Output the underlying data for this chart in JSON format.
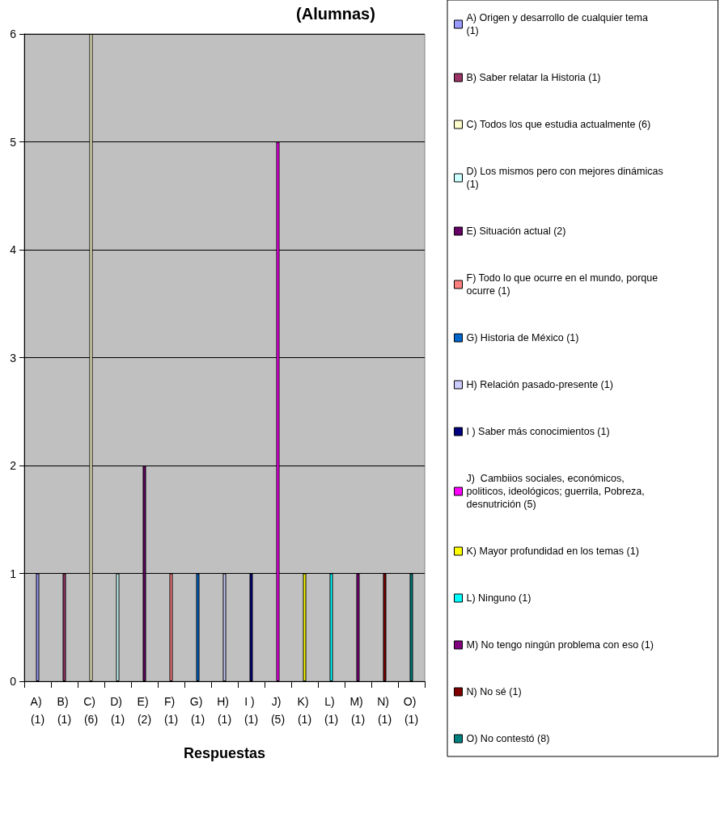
{
  "chart_data": {
    "type": "bar",
    "title": "(Alumnas)",
    "xlabel": "Respuestas",
    "stacked": true,
    "grid": "y",
    "legend": "right",
    "categories": [
      "A) (1)",
      "B) (1)",
      "C) (6)",
      "D) (1)",
      "E) (2)",
      "F) (1)",
      "G) (1)",
      "H) (1)",
      "I ) (1)",
      "J) (5)",
      "K) (1)",
      "L) (1)",
      "M) (1)",
      "N) (1)",
      "O) (1)"
    ],
    "ylim": [
      0,
      6
    ],
    "yticks": [
      0,
      1,
      2,
      3,
      4,
      5,
      6
    ],
    "series": [
      {
        "name": "A) Origen y desarrollo de cualquier tema (1)",
        "color": "#9999ff",
        "values": [
          1,
          null,
          null,
          null,
          null,
          null,
          null,
          null,
          null,
          null,
          null,
          null,
          null,
          null,
          null
        ]
      },
      {
        "name": "B) Saber relatar la Historia (1)",
        "color": "#993366",
        "values": [
          null,
          1,
          null,
          null,
          null,
          null,
          null,
          null,
          null,
          null,
          null,
          null,
          null,
          null,
          null
        ]
      },
      {
        "name": "C) Todos los que estudia actualmente (6)",
        "color": "#ffffcc",
        "values": [
          null,
          null,
          6,
          null,
          null,
          null,
          null,
          null,
          null,
          null,
          null,
          null,
          null,
          null,
          null
        ]
      },
      {
        "name": "D) Los mismos pero con mejores dinámicas (1)",
        "color": "#ccffff",
        "values": [
          null,
          null,
          null,
          1,
          null,
          null,
          null,
          null,
          null,
          null,
          null,
          null,
          null,
          null,
          null
        ]
      },
      {
        "name": "E) Situación actual (2)",
        "color": "#660066",
        "values": [
          null,
          null,
          null,
          null,
          2,
          null,
          null,
          null,
          null,
          null,
          null,
          null,
          null,
          null,
          null
        ]
      },
      {
        "name": "F) Todo lo que ocurre en el mundo, porque ocurre (1)",
        "color": "#ff8080",
        "values": [
          null,
          null,
          null,
          null,
          null,
          1,
          null,
          null,
          null,
          null,
          null,
          null,
          null,
          null,
          null
        ]
      },
      {
        "name": "G) Historia de México (1)",
        "color": "#0066cc",
        "values": [
          null,
          null,
          null,
          null,
          null,
          null,
          1,
          null,
          null,
          null,
          null,
          null,
          null,
          null,
          null
        ]
      },
      {
        "name": "H) Relación pasado-presente (1)",
        "color": "#ccccff",
        "values": [
          null,
          null,
          null,
          null,
          null,
          null,
          null,
          1,
          null,
          null,
          null,
          null,
          null,
          null,
          null
        ]
      },
      {
        "name": "I ) Saber más conocimientos (1)",
        "color": "#000080",
        "values": [
          null,
          null,
          null,
          null,
          null,
          null,
          null,
          null,
          1,
          null,
          null,
          null,
          null,
          null,
          null
        ]
      },
      {
        "name": "J)  Cambiios sociales, económicos, politicos, ideológicos; guerrila, Pobreza, desnutrición (5)",
        "color": "#ff00ff",
        "values": [
          null,
          null,
          null,
          null,
          null,
          null,
          null,
          null,
          null,
          5,
          null,
          null,
          null,
          null,
          null
        ]
      },
      {
        "name": "K) Mayor profundidad en los temas (1)",
        "color": "#ffff00",
        "values": [
          null,
          null,
          null,
          null,
          null,
          null,
          null,
          null,
          null,
          null,
          1,
          null,
          null,
          null,
          null
        ]
      },
      {
        "name": "L) Ninguno (1)",
        "color": "#00ffff",
        "values": [
          null,
          null,
          null,
          null,
          null,
          null,
          null,
          null,
          null,
          null,
          null,
          1,
          null,
          null,
          null
        ]
      },
      {
        "name": "M) No tengo ningún problema con eso (1)",
        "color": "#800080",
        "values": [
          null,
          null,
          null,
          null,
          null,
          null,
          null,
          null,
          null,
          null,
          null,
          null,
          1,
          null,
          null
        ]
      },
      {
        "name": "N) No sé (1)",
        "color": "#800000",
        "values": [
          null,
          null,
          null,
          null,
          null,
          null,
          null,
          null,
          null,
          null,
          null,
          null,
          null,
          1,
          null
        ]
      },
      {
        "name": "O) No contestó (8)",
        "color": "#008080",
        "values": [
          null,
          null,
          null,
          null,
          null,
          null,
          null,
          null,
          null,
          null,
          null,
          null,
          null,
          null,
          1
        ]
      }
    ]
  }
}
